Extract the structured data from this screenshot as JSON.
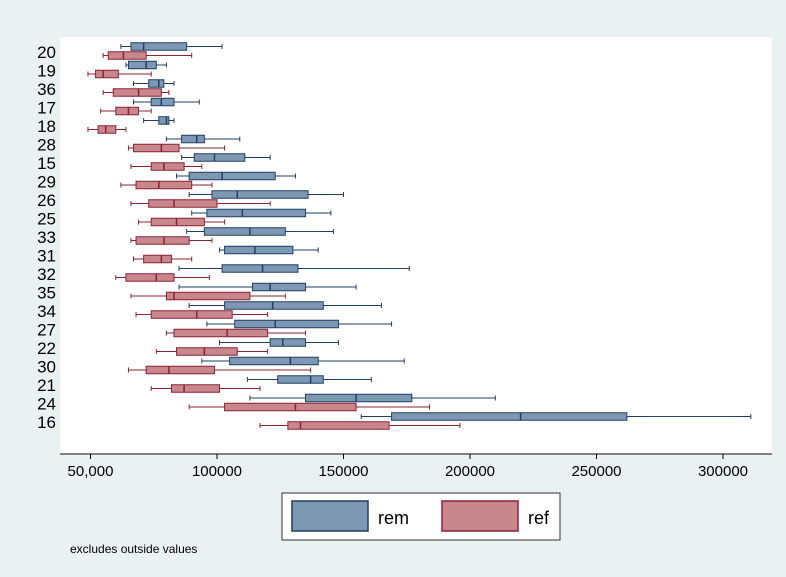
{
  "chart_data": {
    "type": "boxplot",
    "orientation": "horizontal",
    "note": "excludes outside values",
    "xlim": [
      35000,
      320000
    ],
    "xticks": [
      {
        "value": 50000,
        "label": "50,000"
      },
      {
        "value": 100000,
        "label": "100000"
      },
      {
        "value": 150000,
        "label": "150000"
      },
      {
        "value": 200000,
        "label": "200000"
      },
      {
        "value": 250000,
        "label": "250000"
      },
      {
        "value": 300000,
        "label": "300000"
      }
    ],
    "legend": {
      "position": "bottom",
      "items": [
        {
          "name": "rem",
          "color": "#7e98b4"
        },
        {
          "name": "ref",
          "color": "#c8868d"
        }
      ]
    },
    "colors": {
      "rem_fill": "#7e98b4",
      "rem_line": "#1f3f66",
      "ref_fill": "#c8868d",
      "ref_line": "#8c2232",
      "background": "#eaf1f3",
      "plot_area": "#ffffff"
    },
    "series": [
      {
        "name": "rem",
        "boxes": [
          {
            "group": "20",
            "min": 62000,
            "q1": 66000,
            "median": 71000,
            "q3": 88000,
            "max": 102000
          },
          {
            "group": "19",
            "min": 64000,
            "q1": 65000,
            "median": 72000,
            "q3": 76000,
            "max": 80000
          },
          {
            "group": "36",
            "min": 67000,
            "q1": 73000,
            "median": 77000,
            "q3": 79000,
            "max": 83000
          },
          {
            "group": "17",
            "min": 67000,
            "q1": 74000,
            "median": 78000,
            "q3": 83000,
            "max": 93000
          },
          {
            "group": "18",
            "min": 71000,
            "q1": 77000,
            "median": 80000,
            "q3": 81000,
            "max": 83000
          },
          {
            "group": "28",
            "min": 80000,
            "q1": 86000,
            "median": 92000,
            "q3": 95000,
            "max": 109000
          },
          {
            "group": "15",
            "min": 86000,
            "q1": 91000,
            "median": 99000,
            "q3": 111000,
            "max": 121000
          },
          {
            "group": "29",
            "min": 84000,
            "q1": 89000,
            "median": 102000,
            "q3": 123000,
            "max": 131000
          },
          {
            "group": "26",
            "min": 89000,
            "q1": 98000,
            "median": 108000,
            "q3": 136000,
            "max": 150000
          },
          {
            "group": "25",
            "min": 90000,
            "q1": 96000,
            "median": 110000,
            "q3": 135000,
            "max": 145000
          },
          {
            "group": "33",
            "min": 88000,
            "q1": 95000,
            "median": 113000,
            "q3": 127000,
            "max": 146000
          },
          {
            "group": "31",
            "min": 101000,
            "q1": 103000,
            "median": 115000,
            "q3": 130000,
            "max": 140000
          },
          {
            "group": "32",
            "min": 85000,
            "q1": 102000,
            "median": 118000,
            "q3": 132000,
            "max": 176000
          },
          {
            "group": "35",
            "min": 85000,
            "q1": 114000,
            "median": 121000,
            "q3": 135000,
            "max": 155000
          },
          {
            "group": "34",
            "min": 89000,
            "q1": 103000,
            "median": 122000,
            "q3": 142000,
            "max": 165000
          },
          {
            "group": "27",
            "min": 96000,
            "q1": 107000,
            "median": 123000,
            "q3": 148000,
            "max": 169000
          },
          {
            "group": "22",
            "min": 101000,
            "q1": 121000,
            "median": 126000,
            "q3": 135000,
            "max": 148000
          },
          {
            "group": "30",
            "min": 94000,
            "q1": 105000,
            "median": 129000,
            "q3": 140000,
            "max": 174000
          },
          {
            "group": "21",
            "min": 112000,
            "q1": 124000,
            "median": 137000,
            "q3": 142000,
            "max": 161000
          },
          {
            "group": "24",
            "min": 113000,
            "q1": 135000,
            "median": 155000,
            "q3": 177000,
            "max": 210000
          },
          {
            "group": "16",
            "min": 157000,
            "q1": 169000,
            "median": 220000,
            "q3": 262000,
            "max": 311000
          }
        ]
      },
      {
        "name": "ref",
        "boxes": [
          {
            "group": "20",
            "min": 55000,
            "q1": 57000,
            "median": 63000,
            "q3": 72000,
            "max": 90000
          },
          {
            "group": "19",
            "min": 49000,
            "q1": 52000,
            "median": 55000,
            "q3": 61000,
            "max": 74000
          },
          {
            "group": "36",
            "min": 55000,
            "q1": 59000,
            "median": 69000,
            "q3": 78000,
            "max": 81000
          },
          {
            "group": "17",
            "min": 54000,
            "q1": 60000,
            "median": 65000,
            "q3": 69000,
            "max": 74000
          },
          {
            "group": "18",
            "min": 49000,
            "q1": 53000,
            "median": 56000,
            "q3": 60000,
            "max": 64000
          },
          {
            "group": "28",
            "min": 65000,
            "q1": 67000,
            "median": 78000,
            "q3": 85000,
            "max": 103000
          },
          {
            "group": "15",
            "min": 66000,
            "q1": 74000,
            "median": 79000,
            "q3": 87000,
            "max": 94000
          },
          {
            "group": "29",
            "min": 62000,
            "q1": 68000,
            "median": 77000,
            "q3": 90000,
            "max": 98000
          },
          {
            "group": "26",
            "min": 66000,
            "q1": 73000,
            "median": 83000,
            "q3": 100000,
            "max": 121000
          },
          {
            "group": "25",
            "min": 69000,
            "q1": 74000,
            "median": 84000,
            "q3": 95000,
            "max": 103000
          },
          {
            "group": "33",
            "min": 66000,
            "q1": 68000,
            "median": 79000,
            "q3": 89000,
            "max": 98000
          },
          {
            "group": "31",
            "min": 67000,
            "q1": 71000,
            "median": 78000,
            "q3": 82000,
            "max": 90000
          },
          {
            "group": "32",
            "min": 60000,
            "q1": 64000,
            "median": 76000,
            "q3": 83000,
            "max": 97000
          },
          {
            "group": "35",
            "min": 66000,
            "q1": 80000,
            "median": 83000,
            "q3": 113000,
            "max": 127000
          },
          {
            "group": "34",
            "min": 68000,
            "q1": 74000,
            "median": 92000,
            "q3": 106000,
            "max": 120000
          },
          {
            "group": "27",
            "min": 80000,
            "q1": 83000,
            "median": 104000,
            "q3": 120000,
            "max": 135000
          },
          {
            "group": "22",
            "min": 76000,
            "q1": 84000,
            "median": 95000,
            "q3": 108000,
            "max": 120000
          },
          {
            "group": "30",
            "min": 65000,
            "q1": 72000,
            "median": 81000,
            "q3": 99000,
            "max": 137000
          },
          {
            "group": "21",
            "min": 74000,
            "q1": 82000,
            "median": 87000,
            "q3": 101000,
            "max": 117000
          },
          {
            "group": "24",
            "min": 89000,
            "q1": 103000,
            "median": 131000,
            "q3": 155000,
            "max": 184000
          },
          {
            "group": "16",
            "min": 117000,
            "q1": 128000,
            "median": 133000,
            "q3": 168000,
            "max": 196000
          }
        ]
      }
    ]
  }
}
